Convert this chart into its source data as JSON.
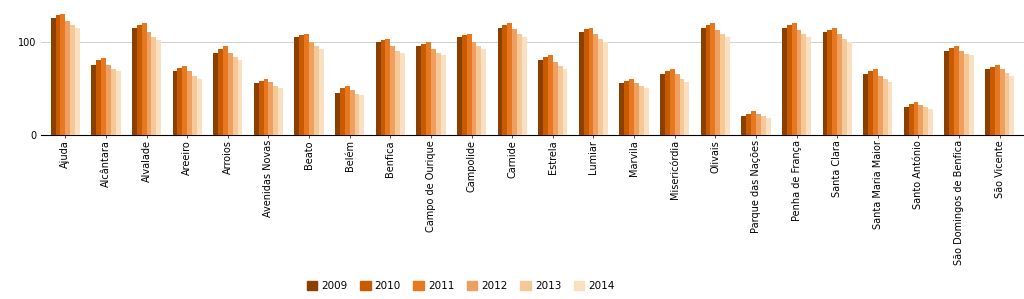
{
  "categories": [
    "Ajuda",
    "Alcântara",
    "Alvalade",
    "Areeiro",
    "Arroios",
    "Avenidas Novas",
    "Beato",
    "Belém",
    "Benfica",
    "Campo de Ourique",
    "Campolide",
    "Carnide",
    "Estrela",
    "Lumiar",
    "Marvila",
    "Misericórdia",
    "Olivais",
    "Parque das Nações",
    "Penha de França",
    "Santa Clara",
    "Santa Maria Maior",
    "Santo António",
    "São Domingos de Benfica",
    "São Vicente"
  ],
  "series": {
    "2009": [
      125,
      75,
      115,
      68,
      88,
      55,
      105,
      45,
      100,
      95,
      105,
      115,
      80,
      110,
      55,
      65,
      115,
      20,
      115,
      110,
      65,
      30,
      90,
      70
    ],
    "2010": [
      128,
      80,
      118,
      72,
      92,
      58,
      107,
      50,
      102,
      97,
      107,
      118,
      83,
      113,
      58,
      68,
      118,
      22,
      118,
      112,
      68,
      33,
      93,
      73
    ],
    "2011": [
      130,
      82,
      120,
      74,
      95,
      60,
      108,
      52,
      103,
      100,
      108,
      120,
      85,
      115,
      60,
      70,
      120,
      25,
      120,
      115,
      70,
      35,
      95,
      75
    ],
    "2012": [
      122,
      75,
      110,
      68,
      88,
      56,
      100,
      48,
      95,
      92,
      100,
      113,
      78,
      108,
      55,
      65,
      112,
      22,
      112,
      108,
      63,
      32,
      90,
      70
    ],
    "2013": [
      118,
      70,
      105,
      63,
      83,
      52,
      95,
      44,
      90,
      88,
      95,
      108,
      74,
      103,
      52,
      60,
      108,
      20,
      108,
      103,
      60,
      30,
      87,
      66
    ],
    "2014": [
      115,
      68,
      102,
      60,
      80,
      50,
      92,
      42,
      88,
      85,
      92,
      105,
      70,
      100,
      50,
      57,
      105,
      18,
      105,
      100,
      57,
      28,
      85,
      63
    ]
  },
  "colors": {
    "2009": "#8B4000",
    "2010": "#C85A00",
    "2011": "#E87820",
    "2012": "#EFA060",
    "2013": "#F5C898",
    "2014": "#FAE0C0"
  },
  "ylim": [
    0,
    135
  ],
  "yticks": [
    0,
    100
  ],
  "bar_width": 0.12,
  "legend_fontsize": 7.5,
  "tick_fontsize": 7,
  "figure_bgcolor": "#ffffff",
  "axes_bgcolor": "#ffffff",
  "grid_color": "#d0d0d0"
}
